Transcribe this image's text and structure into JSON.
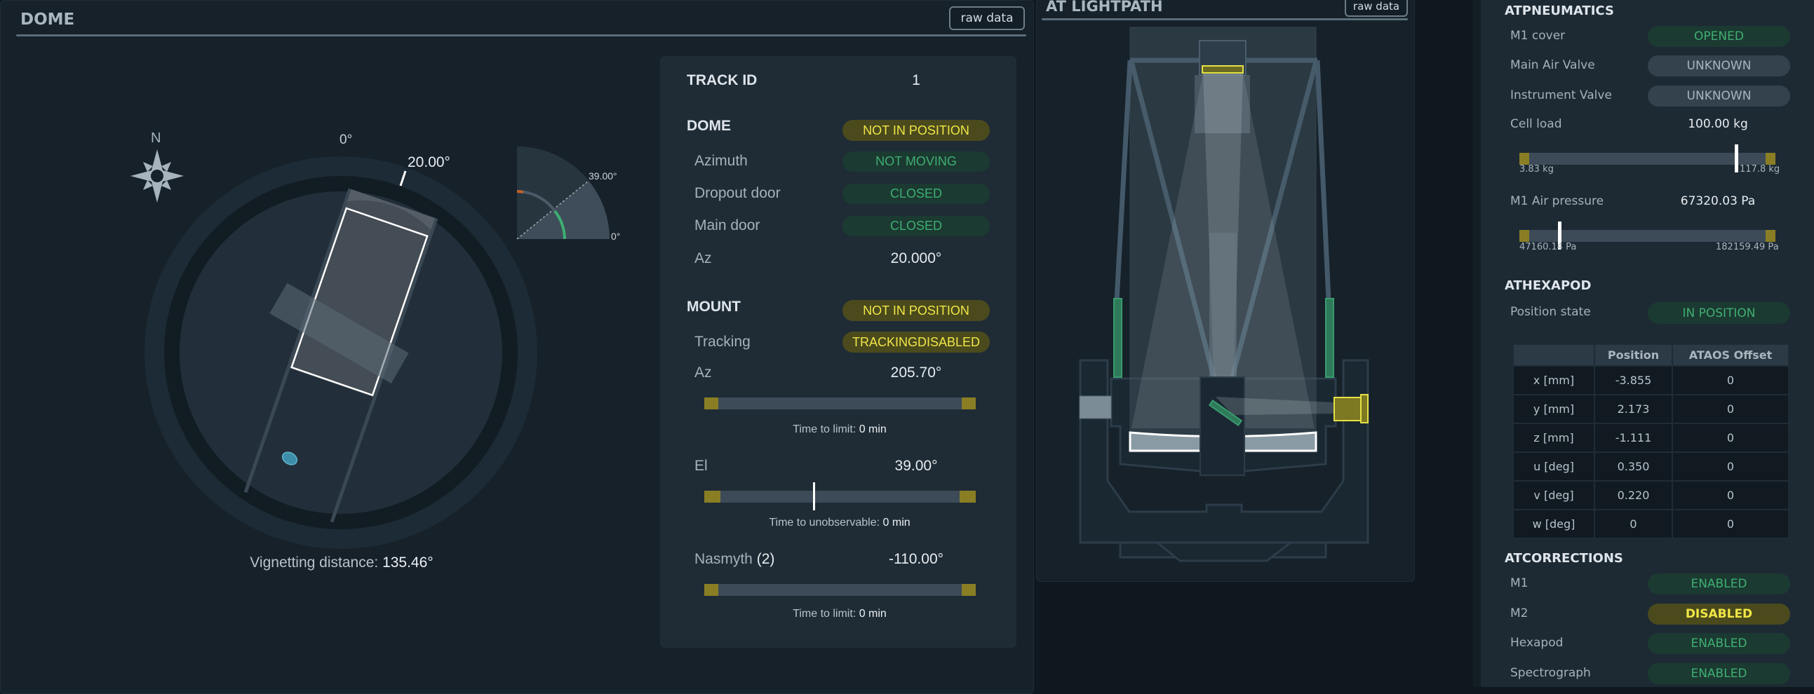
{
  "dome": {
    "title": "DOME",
    "raw_data_label": "raw data",
    "compass_label": "N",
    "dial_zero_label": "0°",
    "dome_az_label": "20.00°",
    "el_gauge_value_label": "39.00°",
    "el_gauge_zero_label": "0°",
    "vignetting_label": "Vignetting distance:",
    "vignetting_value": "135.46°",
    "info": {
      "track_id_label": "TRACK ID",
      "track_id_value": "1",
      "dome_header": "DOME",
      "dome_status": "NOT IN POSITION",
      "rows": [
        {
          "label": "Azimuth",
          "value": "NOT MOVING"
        },
        {
          "label": "Dropout door",
          "value": "CLOSED"
        },
        {
          "label": "Main door",
          "value": "CLOSED"
        }
      ],
      "az_label": "Az",
      "az_value": "20.000°",
      "mount_header": "MOUNT",
      "mount_status": "NOT IN POSITION",
      "tracking_label": "Tracking",
      "tracking_value": "TRACKINGDISABLED",
      "mount_az_label": "Az",
      "mount_az_value": "205.70°",
      "mount_az_time_label": "Time to limit:",
      "mount_az_time_value": "0 min",
      "el_label": "El",
      "el_value": "39.00°",
      "el_time_label": "Time to unobservable:",
      "el_time_value": "0 min",
      "el_marker_fraction": 0.4,
      "nasmyth_label": "Nasmyth",
      "nasmyth_index": "(2)",
      "nasmyth_value": "-110.00°",
      "nasmyth_time_label": "Time to limit:",
      "nasmyth_time_value": "0 min"
    },
    "colors": {
      "ok": "#3fae72",
      "warning": "#f1e646",
      "limit": "#8a7e25",
      "accent": "#4fa3c0"
    }
  },
  "lightpath": {
    "title": "AT LIGHTPATH",
    "raw_data_label": "raw data",
    "colors": {
      "m2": "#e6e044",
      "instrument": "#e6e044",
      "baffles": "#3a9c6e",
      "m1": "#ffffff",
      "tertiary": "#3a9c6e"
    }
  },
  "atpneumatics": {
    "title": "ATPNEUMATICS",
    "rows": [
      {
        "label": "M1 cover",
        "value": "OPENED",
        "state": "ok"
      },
      {
        "label": "Main Air Valve",
        "value": "UNKNOWN",
        "state": "unknown"
      },
      {
        "label": "Instrument Valve",
        "value": "UNKNOWN",
        "state": "unknown"
      }
    ],
    "cell_load_label": "Cell load",
    "cell_load_value": "100.00 kg",
    "cell_load_min": "3.83 kg",
    "cell_load_max": "117.8 kg",
    "cell_load_fraction": 0.84,
    "air_pressure_label": "M1 Air pressure",
    "air_pressure_value": "67320.03 Pa",
    "air_pressure_min": "47160.14 Pa",
    "air_pressure_max": "182159.49 Pa",
    "air_pressure_fraction": 0.15
  },
  "athexapod": {
    "title": "ATHEXAPOD",
    "position_state_label": "Position state",
    "position_state_value": "IN POSITION",
    "table": {
      "headers": [
        "",
        "Position",
        "ATAOS Offset"
      ],
      "rows": [
        [
          "x [mm]",
          "-3.855",
          "0"
        ],
        [
          "y [mm]",
          "2.173",
          "0"
        ],
        [
          "z [mm]",
          "-1.111",
          "0"
        ],
        [
          "u [deg]",
          "0.350",
          "0"
        ],
        [
          "v [deg]",
          "0.220",
          "0"
        ],
        [
          "w [deg]",
          "0",
          "0"
        ]
      ]
    }
  },
  "atcorrections": {
    "title": "ATCORRECTIONS",
    "rows": [
      {
        "label": "M1",
        "value": "ENABLED"
      },
      {
        "label": "M2",
        "value": "DISABLED"
      },
      {
        "label": "Hexapod",
        "value": "ENABLED"
      },
      {
        "label": "Spectrograph",
        "value": "ENABLED"
      }
    ]
  }
}
